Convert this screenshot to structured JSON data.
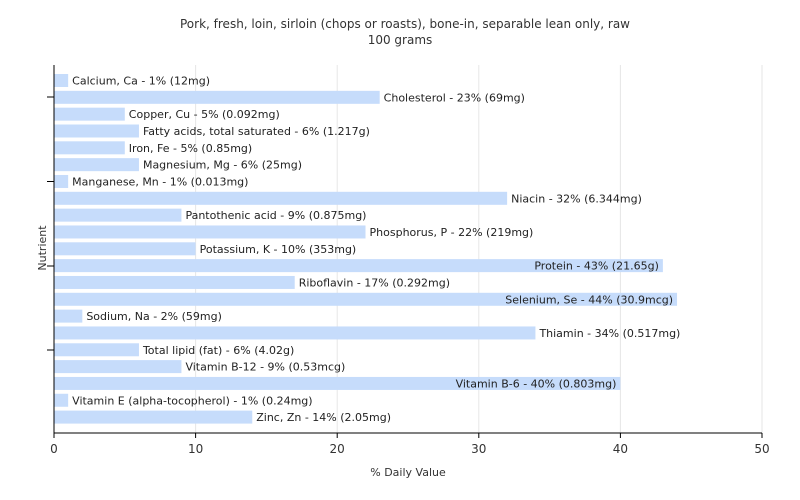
{
  "chart_data": {
    "type": "bar",
    "orientation": "horizontal",
    "title": "Pork, fresh, loin, sirloin (chops or roasts), bone-in, separable lean only, raw",
    "subtitle": "100 grams",
    "xlabel": "% Daily Value",
    "ylabel": "Nutrient",
    "xlim": [
      0,
      50
    ],
    "xticks": [
      0,
      10,
      20,
      30,
      40,
      50
    ],
    "grid": true,
    "bar_color": "#c6dcfb",
    "categories": [
      "Calcium, Ca",
      "Cholesterol",
      "Copper, Cu",
      "Fatty acids, total saturated",
      "Iron, Fe",
      "Magnesium, Mg",
      "Manganese, Mn",
      "Niacin",
      "Pantothenic acid",
      "Phosphorus, P",
      "Potassium, K",
      "Protein",
      "Riboflavin",
      "Selenium, Se",
      "Sodium, Na",
      "Thiamin",
      "Total lipid (fat)",
      "Vitamin B-12",
      "Vitamin B-6",
      "Vitamin E (alpha-tocopherol)",
      "Zinc, Zn"
    ],
    "values": [
      1,
      23,
      5,
      6,
      5,
      6,
      1,
      32,
      9,
      22,
      10,
      43,
      17,
      44,
      2,
      34,
      6,
      9,
      40,
      1,
      14
    ],
    "labels": [
      "Calcium, Ca - 1% (12mg)",
      "Cholesterol - 23% (69mg)",
      "Copper, Cu - 5% (0.092mg)",
      "Fatty acids, total saturated - 6% (1.217g)",
      "Iron, Fe - 5% (0.85mg)",
      "Magnesium, Mg - 6% (25mg)",
      "Manganese, Mn - 1% (0.013mg)",
      "Niacin - 32% (6.344mg)",
      "Pantothenic acid - 9% (0.875mg)",
      "Phosphorus, P - 22% (219mg)",
      "Potassium, K - 10% (353mg)",
      "Protein - 43% (21.65g)",
      "Riboflavin - 17% (0.292mg)",
      "Selenium, Se - 44% (30.9mcg)",
      "Sodium, Na - 2% (59mg)",
      "Thiamin - 34% (0.517mg)",
      "Total lipid (fat) - 6% (4.02g)",
      "Vitamin B-12 - 9% (0.53mcg)",
      "Vitamin B-6 - 40% (0.803mg)",
      "Vitamin E (alpha-tocopherol) - 1% (0.24mg)",
      "Zinc, Zn - 14% (2.05mg)"
    ]
  }
}
